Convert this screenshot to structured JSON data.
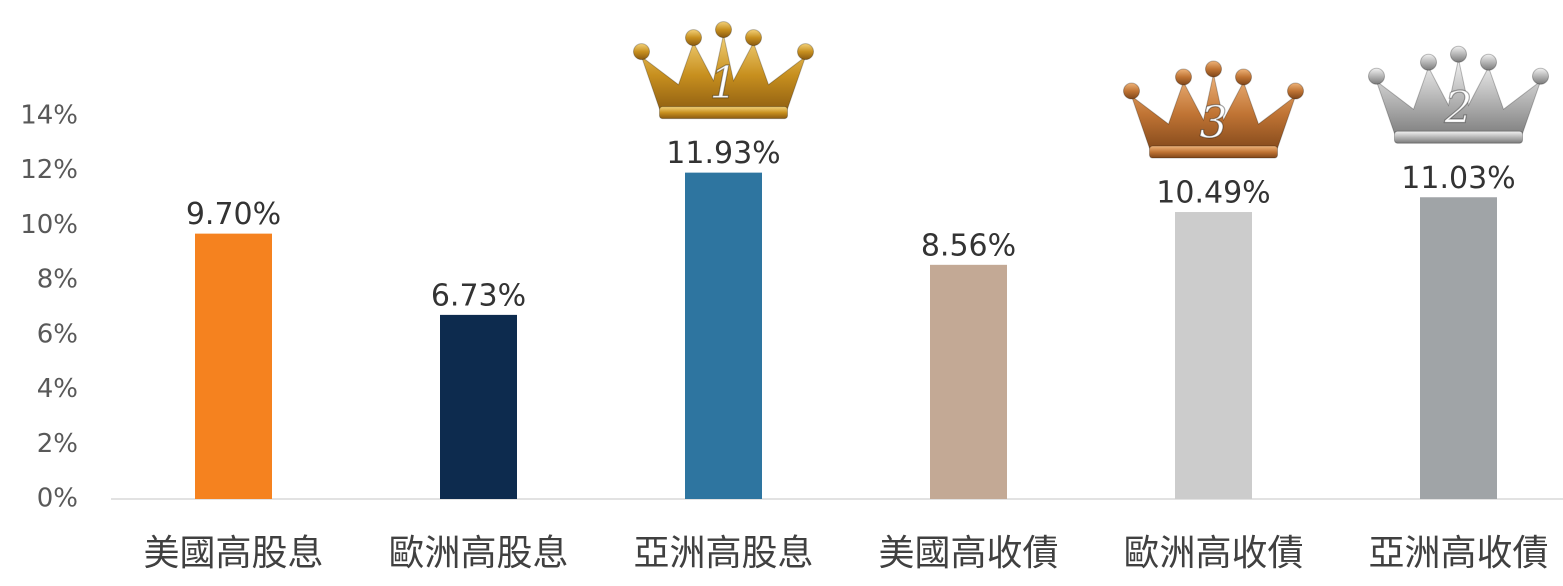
{
  "chart_data": {
    "type": "bar",
    "categories": [
      "美國高股息",
      "歐洲高股息",
      "亞洲高股息",
      "美國高收債",
      "歐洲高收債",
      "亞洲高收債"
    ],
    "values": [
      9.7,
      6.73,
      11.93,
      8.56,
      10.49,
      11.03
    ],
    "value_labels": [
      "9.70%",
      "6.73%",
      "11.93%",
      "8.56%",
      "10.49%",
      "11.03%"
    ],
    "colors": [
      "#f5821f",
      "#0d2b4e",
      "#2e75a0",
      "#c3a995",
      "#cccccc",
      "#a0a4a7"
    ],
    "ranks": [
      null,
      null,
      "1",
      null,
      "3",
      "2"
    ],
    "ylim": [
      0,
      14
    ],
    "yticks": [
      {
        "value": 0,
        "label": "0%"
      },
      {
        "value": 2,
        "label": "2%"
      },
      {
        "value": 4,
        "label": "4%"
      },
      {
        "value": 6,
        "label": "6%"
      },
      {
        "value": 8,
        "label": "8%"
      },
      {
        "value": 10,
        "label": "10%"
      },
      {
        "value": 12,
        "label": "12%"
      },
      {
        "value": 14,
        "label": "14%"
      }
    ],
    "grid": false
  }
}
